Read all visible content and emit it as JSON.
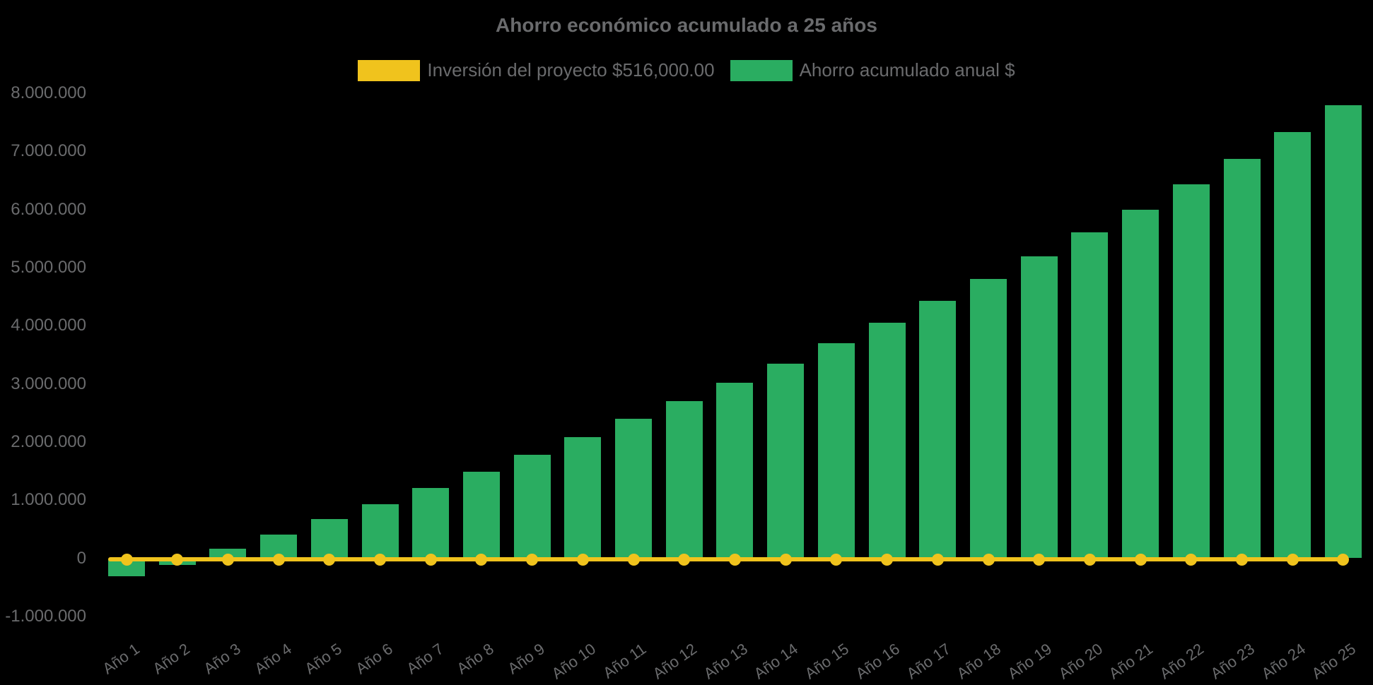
{
  "page": {
    "background": "#000000",
    "text_color": "#6A6B6D"
  },
  "chart_data": {
    "type": "bar",
    "title": "Ahorro económico acumulado a 25 años",
    "legend_position": "top",
    "grid": false,
    "categories": [
      "Año 1",
      "Año 2",
      "Año 3",
      "Año 4",
      "Año 5",
      "Año 6",
      "Año 7",
      "Año 8",
      "Año 9",
      "Año 10",
      "Año 11",
      "Año 12",
      "Año 13",
      "Año 14",
      "Año 15",
      "Año 16",
      "Año 17",
      "Año 18",
      "Año 19",
      "Año 20",
      "Año 21",
      "Año 22",
      "Año 23",
      "Año 24",
      "Año 25"
    ],
    "series": [
      {
        "name": "Inversión del proyecto $516,000.00",
        "type": "line",
        "color": "#F0C31D",
        "plotted_value": 0,
        "note_investment_amount": "$516,000.00"
      },
      {
        "name": "Ahorro acumulado anual $",
        "type": "bar",
        "color": "#2AAD61",
        "values": [
          -310000,
          -110000,
          160000,
          410000,
          675000,
          930000,
          1210000,
          1490000,
          1780000,
          2080000,
          2400000,
          2700000,
          3020000,
          3350000,
          3700000,
          4050000,
          4430000,
          4800000,
          5190000,
          5610000,
          6000000,
          6430000,
          6870000,
          7330000,
          7790000
        ]
      }
    ],
    "y_axis": {
      "min": -1000000,
      "max": 8000000,
      "tick_step": 1000000,
      "tick_values": [
        8000000,
        7000000,
        6000000,
        5000000,
        4000000,
        3000000,
        2000000,
        1000000,
        0,
        -1000000
      ],
      "tick_labels": [
        "8.000.000",
        "7.000.000",
        "6.000.000",
        "5.000.000",
        "4.000.000",
        "3.000.000",
        "2.000.000",
        "1.000.000",
        "0",
        "-1.000.000"
      ]
    },
    "x_axis": {
      "label_rotation_deg": -35
    }
  }
}
